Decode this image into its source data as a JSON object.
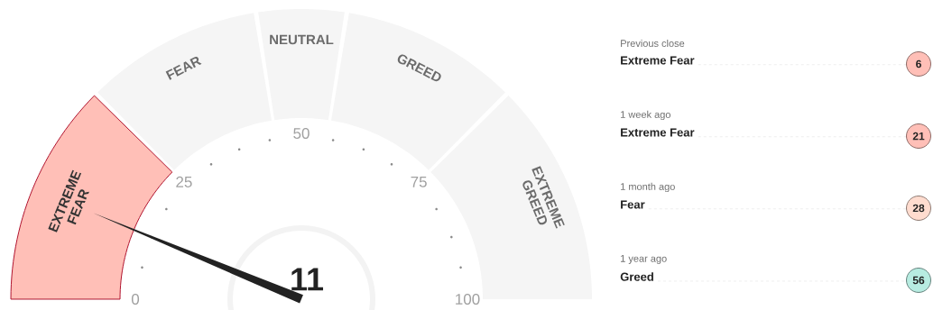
{
  "chart_data": [
    {
      "type": "donut",
      "categories": [
        "EXTREME FEAR",
        "FEAR",
        "NEUTRAL",
        "GREED",
        "EXTREME GREED"
      ],
      "values": [
        25,
        20,
        10,
        20,
        25
      ],
      "colors": [
        "#ffbfb7",
        "#f5f5f5",
        "#f5f5f5",
        "#f5f5f5",
        "#f5f5f5"
      ],
      "needle": "EXTREME FEAR",
      "annotations": [
        "11",
        "0",
        "25",
        "50",
        "75",
        "100"
      ]
    },
    {
      "type": "other",
      "categories": [
        "Previous close",
        "1 week ago",
        "1 month ago",
        "1 year ago"
      ],
      "values": [
        6,
        21,
        28,
        56
      ],
      "colors": [
        "#ffbfb7",
        "#ffbfb7",
        "#ffdccf",
        "#b7ece1"
      ],
      "data_labels": true,
      "annotations": [
        "Extreme Fear",
        "Extreme Fear",
        "Fear",
        "Greed"
      ]
    }
  ]
}
